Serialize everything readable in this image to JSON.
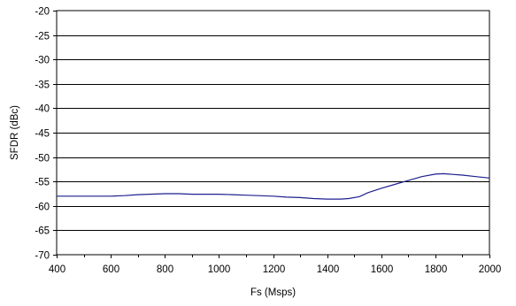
{
  "chart_data": {
    "type": "line",
    "title": "",
    "xlabel": "Fs (Msps)",
    "ylabel": "SFDR (dBc)",
    "xlim": [
      400,
      2000
    ],
    "ylim": [
      -70,
      -20
    ],
    "x_ticks": [
      400,
      600,
      800,
      1000,
      1200,
      1400,
      1600,
      1800,
      2000
    ],
    "x_tick_labels": [
      "400",
      "600",
      "800",
      "1000",
      "1200",
      "1400",
      "1600",
      "1800",
      "2000"
    ],
    "y_ticks": [
      -20,
      -25,
      -30,
      -35,
      -40,
      -45,
      -50,
      -55,
      -60,
      -65,
      -70
    ],
    "y_tick_labels": [
      "-20",
      "-25",
      "-30",
      "-35",
      "-40",
      "-45",
      "-50",
      "-55",
      "-60",
      "-65",
      "-70"
    ],
    "grid": "horizontal",
    "legend": "none",
    "series": [
      {
        "color": "#1f1f8f",
        "x": [
          400,
          500,
          600,
          650,
          700,
          800,
          850,
          900,
          950,
          1000,
          1050,
          1100,
          1200,
          1250,
          1300,
          1350,
          1400,
          1450,
          1480,
          1520,
          1550,
          1600,
          1650,
          1700,
          1750,
          1800,
          1830,
          1900,
          1950,
          2000
        ],
        "y": [
          -58.0,
          -58.0,
          -58.0,
          -57.9,
          -57.7,
          -57.5,
          -57.5,
          -57.6,
          -57.6,
          -57.6,
          -57.7,
          -57.8,
          -58.0,
          -58.2,
          -58.3,
          -58.5,
          -58.6,
          -58.6,
          -58.5,
          -58.1,
          -57.3,
          -56.4,
          -55.6,
          -54.8,
          -54.0,
          -53.5,
          -53.4,
          -53.7,
          -54.0,
          -54.3
        ]
      }
    ]
  }
}
